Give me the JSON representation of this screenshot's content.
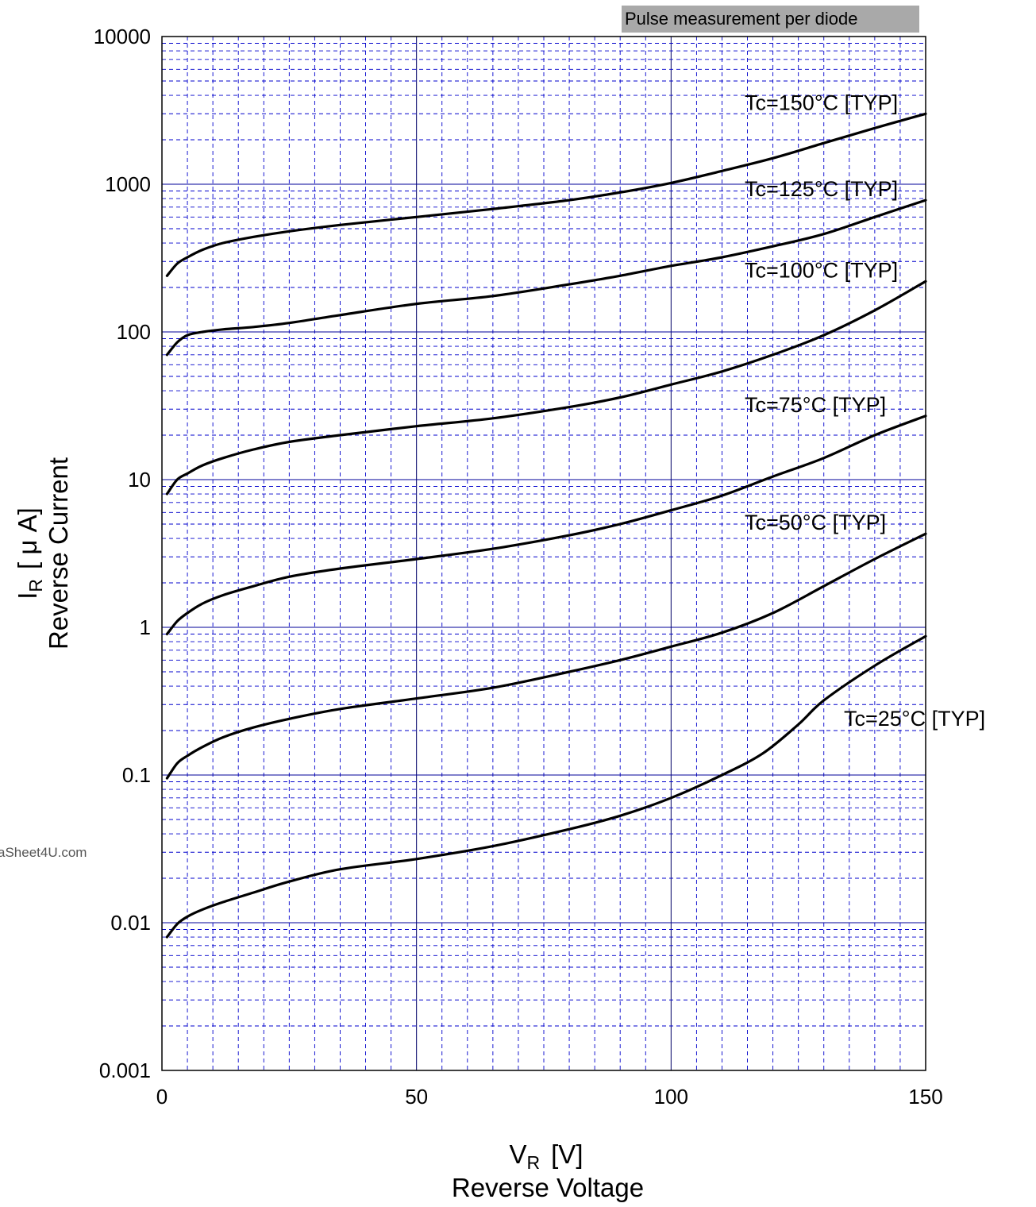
{
  "chart_data": {
    "type": "line",
    "title": "",
    "note": "Pulse measurement per diode",
    "watermark": "aSheet4U.com",
    "xlabel": {
      "symbol": "V",
      "subscript": "R",
      "unit": "[V]",
      "name": "Reverse Voltage"
    },
    "ylabel": {
      "symbol": "I",
      "subscript": "R",
      "unit": "[ μ A]",
      "name": "Reverse Current"
    },
    "xlim": [
      0,
      150
    ],
    "ylim": [
      0.001,
      10000
    ],
    "yscale": "log",
    "grid": true,
    "x_ticks": [
      "0",
      "50",
      "100",
      "150"
    ],
    "y_ticks": [
      "0.001",
      "0.01",
      "0.1",
      "1",
      "10",
      "100",
      "1000",
      "10000"
    ],
    "line_color": "#000000",
    "grid_color": "#0000cc",
    "note_bg": "#a9a9a9",
    "series": [
      {
        "name": "Tc=150°C  [TYP]",
        "x": [
          1,
          3,
          5,
          8,
          12,
          18,
          25,
          35,
          50,
          65,
          80,
          90,
          100,
          110,
          120,
          130,
          140,
          150
        ],
        "y": [
          240,
          290,
          320,
          360,
          400,
          440,
          480,
          530,
          600,
          680,
          780,
          880,
          1020,
          1230,
          1500,
          1900,
          2400,
          3000
        ]
      },
      {
        "name": "Tc=125°C  [TYP]",
        "x": [
          1,
          3,
          5,
          8,
          12,
          18,
          25,
          35,
          50,
          65,
          80,
          90,
          100,
          110,
          120,
          130,
          140,
          150
        ],
        "y": [
          70,
          85,
          95,
          100,
          104,
          108,
          115,
          130,
          155,
          175,
          210,
          240,
          280,
          320,
          380,
          460,
          600,
          780
        ]
      },
      {
        "name": "Tc=100°C  [TYP]",
        "x": [
          1,
          3,
          5,
          8,
          12,
          18,
          25,
          35,
          50,
          65,
          80,
          90,
          100,
          110,
          120,
          130,
          140,
          150
        ],
        "y": [
          8,
          10,
          11,
          12.5,
          14,
          16,
          18,
          20,
          23,
          26,
          31,
          36,
          44,
          54,
          70,
          95,
          140,
          220
        ]
      },
      {
        "name": "Tc=75°C  [TYP]",
        "x": [
          1,
          3,
          5,
          8,
          12,
          18,
          25,
          35,
          50,
          65,
          80,
          90,
          100,
          110,
          120,
          130,
          140,
          150
        ],
        "y": [
          0.9,
          1.1,
          1.25,
          1.45,
          1.65,
          1.9,
          2.2,
          2.5,
          2.9,
          3.4,
          4.2,
          5.0,
          6.2,
          7.8,
          10.5,
          14,
          20,
          27
        ]
      },
      {
        "name": "Tc=50°C  [TYP]",
        "x": [
          1,
          3,
          5,
          8,
          12,
          18,
          25,
          35,
          50,
          65,
          80,
          90,
          100,
          110,
          120,
          130,
          140,
          150
        ],
        "y": [
          0.095,
          0.12,
          0.135,
          0.155,
          0.18,
          0.21,
          0.24,
          0.28,
          0.33,
          0.39,
          0.5,
          0.6,
          0.74,
          0.92,
          1.25,
          1.9,
          2.9,
          4.3
        ]
      },
      {
        "name": "Tc=25°C  [TYP]",
        "x": [
          1,
          3,
          5,
          8,
          12,
          18,
          25,
          35,
          50,
          65,
          80,
          90,
          100,
          110,
          118,
          125,
          130,
          140,
          150
        ],
        "y": [
          0.008,
          0.0098,
          0.011,
          0.0123,
          0.0138,
          0.016,
          0.019,
          0.023,
          0.027,
          0.033,
          0.043,
          0.053,
          0.07,
          0.1,
          0.14,
          0.22,
          0.32,
          0.55,
          0.87
        ]
      }
    ]
  }
}
